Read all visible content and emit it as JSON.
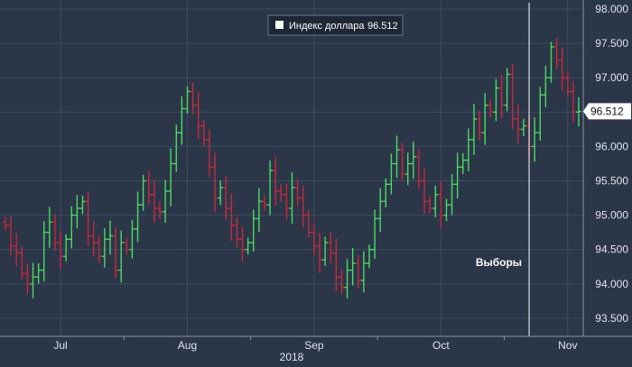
{
  "chart_data": {
    "type": "ohlc",
    "title": "",
    "xlabel": "",
    "ylabel": "",
    "ylim": [
      93.25,
      98.0
    ],
    "yticks": [
      93.5,
      94.0,
      94.5,
      95.0,
      95.5,
      96.0,
      96.5,
      97.0,
      97.5,
      98.0
    ],
    "ytick_labels": [
      "93.500",
      "94.000",
      "94.500",
      "95.000",
      "95.500",
      "96.000",
      "96.500",
      "97.000",
      "97.500",
      "98.000"
    ],
    "xticks": [
      {
        "label": "Jul",
        "index": 10
      },
      {
        "label": "Aug",
        "index": 33
      },
      {
        "label": "Sep",
        "index": 56
      },
      {
        "label": "Oct",
        "index": 79
      },
      {
        "label": "Nov",
        "index": 102
      }
    ],
    "year_label": "2018",
    "grid": true,
    "legend": {
      "position": "top-center",
      "name": "Индекс доллара",
      "value": "96.512"
    },
    "last_value": "96.512",
    "annotation": {
      "text": "Выборы",
      "x_index": 95
    },
    "colors": {
      "up": "#4cd964",
      "down": "#c8283c",
      "background": "#2b3648",
      "grid": "#3f4b60",
      "text": "#dfe4ec"
    },
    "series": [
      {
        "name": "Индекс доллара",
        "close": [
          94.85,
          94.55,
          94.45,
          94.15,
          94.0,
          94.1,
          94.2,
          94.75,
          94.9,
          94.6,
          94.4,
          94.65,
          95.0,
          95.1,
          95.2,
          94.7,
          94.6,
          94.4,
          94.65,
          94.7,
          94.2,
          94.6,
          94.5,
          94.8,
          95.15,
          95.5,
          95.3,
          95.1,
          95.05,
          95.35,
          95.75,
          96.2,
          96.55,
          96.8,
          96.6,
          96.3,
          96.1,
          95.7,
          95.25,
          95.4,
          95.1,
          94.85,
          94.65,
          94.5,
          94.6,
          94.95,
          95.2,
          95.15,
          95.65,
          95.35,
          95.3,
          95.1,
          95.4,
          95.25,
          95.0,
          94.75,
          94.55,
          94.35,
          94.6,
          94.45,
          94.1,
          93.95,
          94.2,
          94.3,
          94.05,
          94.3,
          94.5,
          94.95,
          95.2,
          95.45,
          95.75,
          95.95,
          95.6,
          95.75,
          95.85,
          95.5,
          95.2,
          95.1,
          95.3,
          95.0,
          95.15,
          95.45,
          95.7,
          95.8,
          96.1,
          96.4,
          96.2,
          96.6,
          96.5,
          96.85,
          96.6,
          97.05,
          96.4,
          96.25,
          96.3,
          96.0,
          96.2,
          96.75,
          97.0,
          97.45,
          97.25,
          97.0,
          96.8,
          96.5,
          96.51
        ]
      }
    ]
  }
}
